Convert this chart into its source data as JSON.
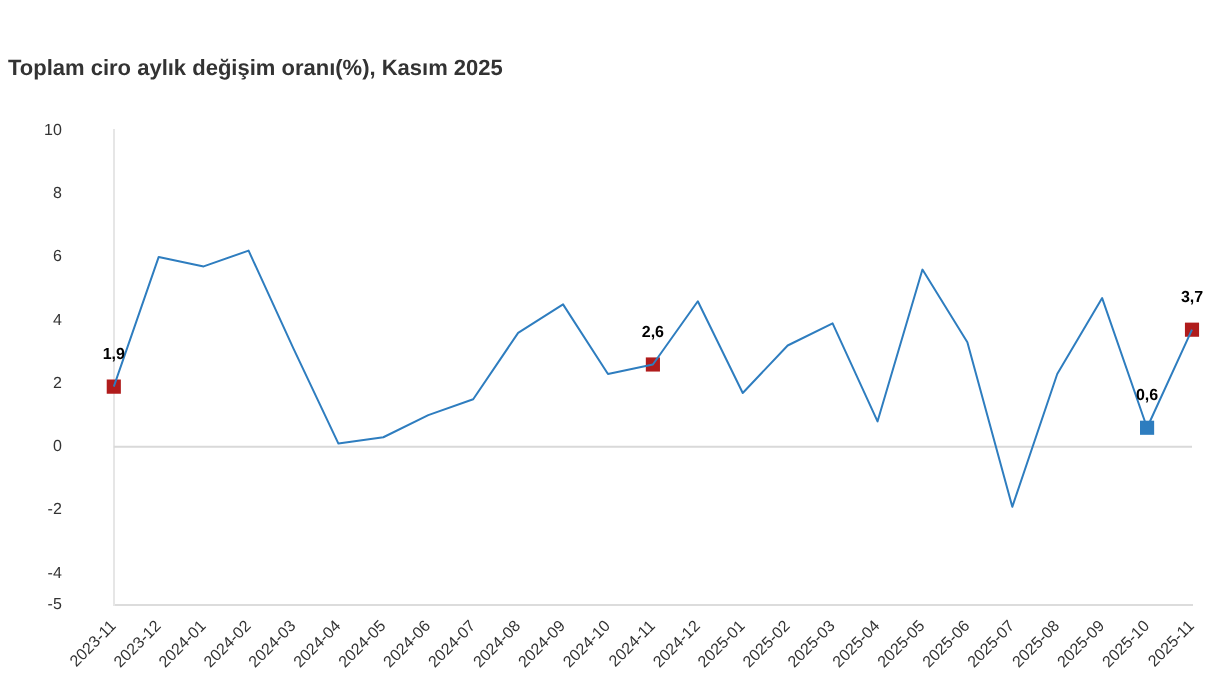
{
  "chart_data": {
    "type": "line",
    "title": "Toplam ciro aylık değişim oranı(%), Kasım 2025",
    "categories": [
      "2023-11",
      "2023-12",
      "2024-01",
      "2024-02",
      "2024-03",
      "2024-04",
      "2024-05",
      "2024-06",
      "2024-07",
      "2024-08",
      "2024-09",
      "2024-10",
      "2024-11",
      "2024-12",
      "2025-01",
      "2025-02",
      "2025-03",
      "2025-04",
      "2025-05",
      "2025-06",
      "2025-07",
      "2025-08",
      "2025-09",
      "2025-10",
      "2025-11"
    ],
    "series": [
      {
        "color": "#2e7dbf",
        "values": [
          1.9,
          6.0,
          5.7,
          6.2,
          3.1,
          0.1,
          0.3,
          1.0,
          1.5,
          3.6,
          4.5,
          2.3,
          2.6,
          4.6,
          1.7,
          3.2,
          3.9,
          0.8,
          5.6,
          3.3,
          -1.9,
          2.3,
          4.7,
          0.6,
          3.7
        ]
      },
      {
        "type": "scatter",
        "marker": "square",
        "values": [
          1.9,
          null,
          null,
          null,
          null,
          null,
          null,
          null,
          null,
          null,
          null,
          null,
          2.6,
          null,
          null,
          null,
          null,
          null,
          null,
          null,
          null,
          null,
          null,
          0.6,
          3.7
        ],
        "colors": [
          "#b01c1c",
          "#2e7dbf",
          "#2e7dbf",
          "#2e7dbf",
          "#2e7dbf",
          "#2e7dbf",
          "#2e7dbf",
          "#2e7dbf",
          "#2e7dbf",
          "#2e7dbf",
          "#2e7dbf",
          "#2e7dbf",
          "#b01c1c",
          "#2e7dbf",
          "#2e7dbf",
          "#2e7dbf",
          "#2e7dbf",
          "#2e7dbf",
          "#2e7dbf",
          "#2e7dbf",
          "#2e7dbf",
          "#2e7dbf",
          "#2e7dbf",
          "#2e7dbf",
          "#b01c1c"
        ],
        "value_labels": [
          "1,9",
          null,
          null,
          null,
          null,
          null,
          null,
          null,
          null,
          null,
          null,
          null,
          "2,6",
          null,
          null,
          null,
          null,
          null,
          null,
          null,
          null,
          null,
          null,
          "0,6",
          "3,7"
        ]
      }
    ],
    "ylim": [
      -5,
      10
    ],
    "yticks": [
      -5,
      -4,
      -2,
      0,
      2,
      4,
      6,
      8,
      10
    ],
    "ref_lines": [
      {
        "axis": "y",
        "value": 0,
        "color": "#d9d9d9"
      }
    ],
    "grid": false,
    "legend": false
  }
}
